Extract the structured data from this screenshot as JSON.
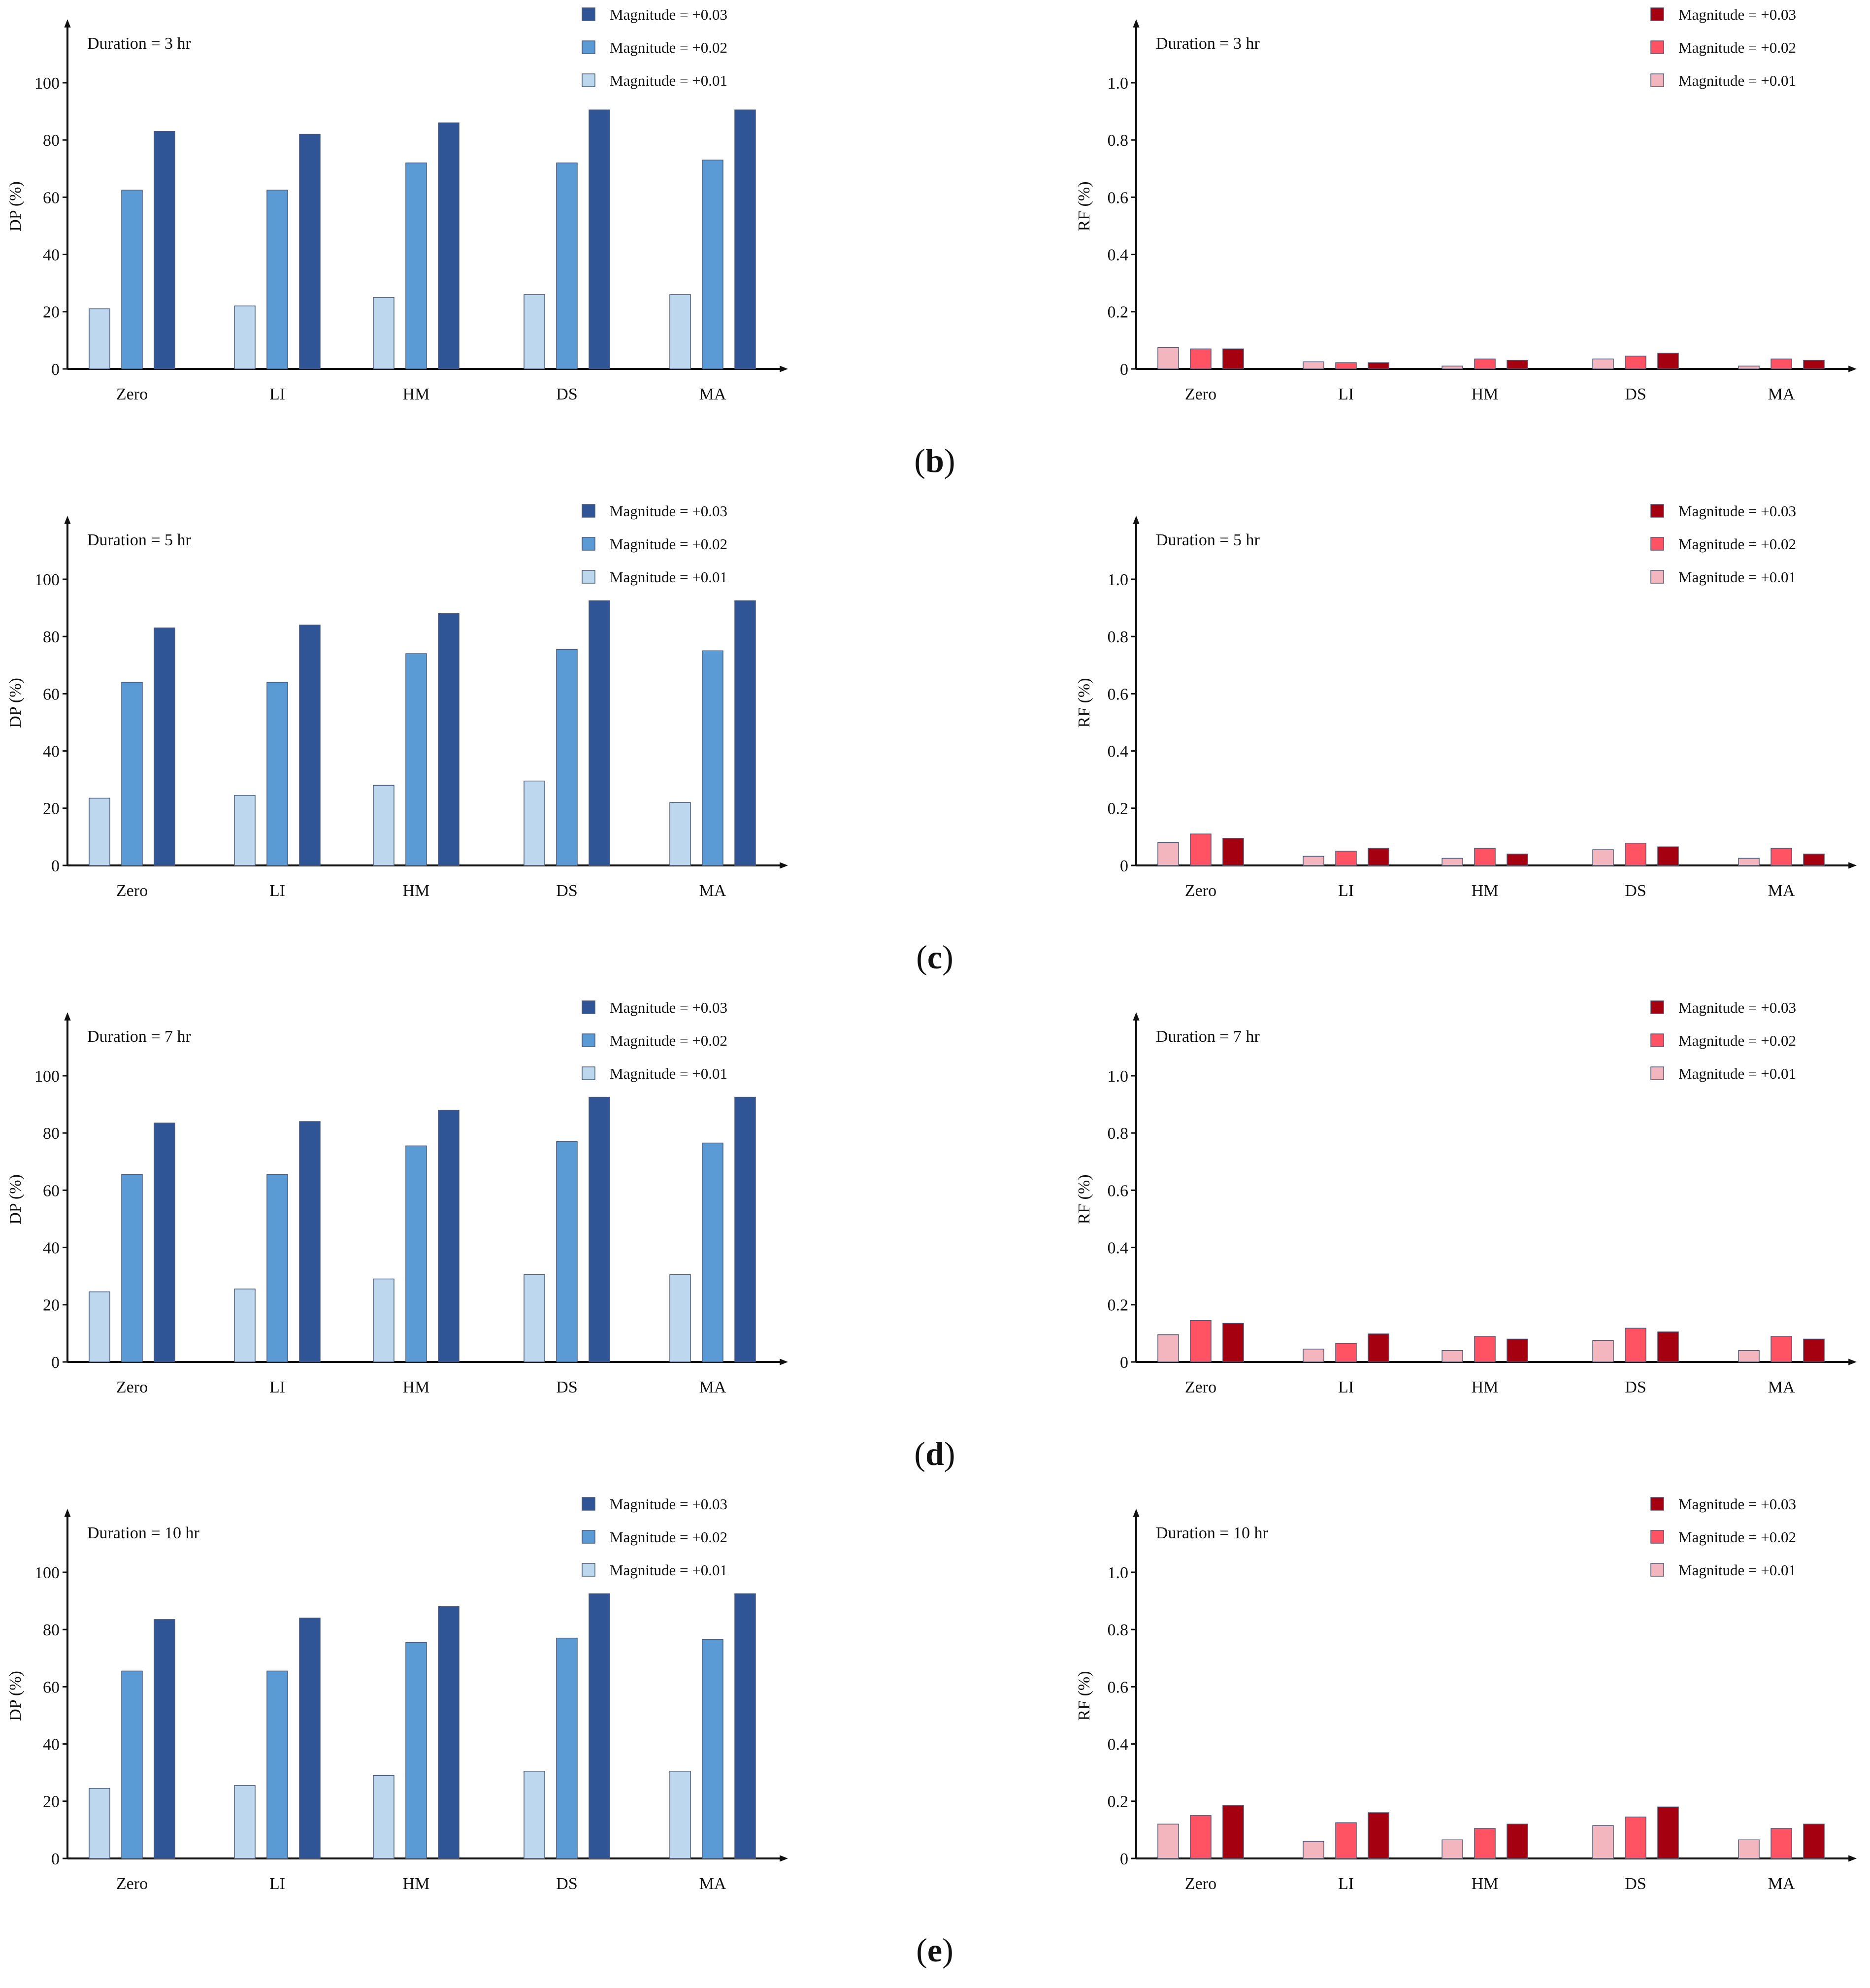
{
  "figure": {
    "panel_labels": [
      "b",
      "c",
      "d",
      "e"
    ]
  },
  "colors": {
    "dp_series": [
      "#BDD7EE",
      "#5B9BD5",
      "#2F5597"
    ],
    "rf_series": [
      "#F4B6BE",
      "#FF5262",
      "#A50010"
    ],
    "bar_stroke": "#4A5A7A",
    "axis": "#111111"
  },
  "chart_data": [
    {
      "id": "b-dp",
      "panel": "b",
      "type": "bar",
      "title": "Duration = 3 hr",
      "ylabel": "DP (%)",
      "xlabel": "",
      "ylim": [
        0,
        110
      ],
      "yticks": [
        0,
        20,
        40,
        60,
        80,
        100
      ],
      "ytick_labels": [
        "0",
        "20",
        "40",
        "60",
        "80",
        "100"
      ],
      "categories": [
        "Zero",
        "LI",
        "HM",
        "DS",
        "MA"
      ],
      "series": [
        {
          "name": "Magnitude = +0.01",
          "values": [
            21,
            22,
            25,
            26,
            26
          ]
        },
        {
          "name": "Magnitude = +0.02",
          "values": [
            62.5,
            62.5,
            72,
            72,
            73
          ]
        },
        {
          "name": "Magnitude = +0.03",
          "values": [
            83,
            82,
            86,
            90.5,
            90.5
          ]
        }
      ],
      "legend_order": [
        "Magnitude = +0.03",
        "Magnitude = +0.02",
        "Magnitude = +0.01"
      ],
      "legend": "top-right"
    },
    {
      "id": "b-rf",
      "panel": "b",
      "type": "bar",
      "title": "Duration = 3 hr",
      "ylabel": "RF (%)",
      "xlabel": "",
      "ylim": [
        0,
        1.1
      ],
      "yticks": [
        0,
        0.2,
        0.4,
        0.6,
        0.8,
        1.0
      ],
      "ytick_labels": [
        "0",
        "0.2",
        "0.4",
        "0.6",
        "0.8",
        "1.0"
      ],
      "categories": [
        "Zero",
        "LI",
        "HM",
        "DS",
        "MA"
      ],
      "series": [
        {
          "name": "Magnitude = +0.01",
          "values": [
            0.075,
            0.025,
            0.01,
            0.035,
            0.01
          ]
        },
        {
          "name": "Magnitude = +0.02",
          "values": [
            0.07,
            0.022,
            0.035,
            0.045,
            0.035
          ]
        },
        {
          "name": "Magnitude = +0.03",
          "values": [
            0.07,
            0.022,
            0.03,
            0.055,
            0.03
          ]
        }
      ],
      "legend_order": [
        "Magnitude = +0.03",
        "Magnitude = +0.02",
        "Magnitude = +0.01"
      ],
      "legend": "top-right"
    },
    {
      "id": "c-dp",
      "panel": "c",
      "type": "bar",
      "title": "Duration = 5 hr",
      "ylabel": "DP (%)",
      "xlabel": "",
      "ylim": [
        0,
        110
      ],
      "yticks": [
        0,
        20,
        40,
        60,
        80,
        100
      ],
      "ytick_labels": [
        "0",
        "20",
        "40",
        "60",
        "80",
        "100"
      ],
      "categories": [
        "Zero",
        "LI",
        "HM",
        "DS",
        "MA"
      ],
      "series": [
        {
          "name": "Magnitude = +0.01",
          "values": [
            23.5,
            24.5,
            28,
            29.5,
            22
          ]
        },
        {
          "name": "Magnitude = +0.02",
          "values": [
            64,
            64,
            74,
            75.5,
            75
          ]
        },
        {
          "name": "Magnitude = +0.03",
          "values": [
            83,
            84,
            88,
            92.5,
            92.5
          ]
        }
      ],
      "legend_order": [
        "Magnitude = +0.03",
        "Magnitude = +0.02",
        "Magnitude = +0.01"
      ],
      "legend": "top-right"
    },
    {
      "id": "c-rf",
      "panel": "c",
      "type": "bar",
      "title": "Duration = 5 hr",
      "ylabel": "RF (%)",
      "xlabel": "",
      "ylim": [
        0,
        1.1
      ],
      "yticks": [
        0,
        0.2,
        0.4,
        0.6,
        0.8,
        1.0
      ],
      "ytick_labels": [
        "0",
        "0.2",
        "0.4",
        "0.6",
        "0.8",
        "1.0"
      ],
      "categories": [
        "Zero",
        "LI",
        "HM",
        "DS",
        "MA"
      ],
      "series": [
        {
          "name": "Magnitude = +0.01",
          "values": [
            0.08,
            0.032,
            0.025,
            0.055,
            0.025
          ]
        },
        {
          "name": "Magnitude = +0.02",
          "values": [
            0.11,
            0.05,
            0.06,
            0.078,
            0.06
          ]
        },
        {
          "name": "Magnitude = +0.03",
          "values": [
            0.095,
            0.06,
            0.04,
            0.065,
            0.04
          ]
        }
      ],
      "legend_order": [
        "Magnitude = +0.03",
        "Magnitude = +0.02",
        "Magnitude = +0.01"
      ],
      "legend": "top-right"
    },
    {
      "id": "d-dp",
      "panel": "d",
      "type": "bar",
      "title": "Duration = 7 hr",
      "ylabel": "DP (%)",
      "xlabel": "",
      "ylim": [
        0,
        110
      ],
      "yticks": [
        0,
        20,
        40,
        60,
        80,
        100
      ],
      "ytick_labels": [
        "0",
        "20",
        "40",
        "60",
        "80",
        "100"
      ],
      "categories": [
        "Zero",
        "LI",
        "HM",
        "DS",
        "MA"
      ],
      "series": [
        {
          "name": "Magnitude = +0.01",
          "values": [
            24.5,
            25.5,
            29,
            30.5,
            30.5
          ]
        },
        {
          "name": "Magnitude = +0.02",
          "values": [
            65.5,
            65.5,
            75.5,
            77,
            76.5
          ]
        },
        {
          "name": "Magnitude = +0.03",
          "values": [
            83.5,
            84,
            88,
            92.5,
            92.5
          ]
        }
      ],
      "legend_order": [
        "Magnitude = +0.03",
        "Magnitude = +0.02",
        "Magnitude = +0.01"
      ],
      "legend": "top-right"
    },
    {
      "id": "d-rf",
      "panel": "d",
      "type": "bar",
      "title": "Duration = 7 hr",
      "ylabel": "RF (%)",
      "xlabel": "",
      "ylim": [
        0,
        1.1
      ],
      "yticks": [
        0,
        0.2,
        0.4,
        0.6,
        0.8,
        1.0
      ],
      "ytick_labels": [
        "0",
        "0.2",
        "0.4",
        "0.6",
        "0.8",
        "1.0"
      ],
      "categories": [
        "Zero",
        "LI",
        "HM",
        "DS",
        "MA"
      ],
      "series": [
        {
          "name": "Magnitude = +0.01",
          "values": [
            0.095,
            0.045,
            0.04,
            0.075,
            0.04
          ]
        },
        {
          "name": "Magnitude = +0.02",
          "values": [
            0.145,
            0.065,
            0.09,
            0.118,
            0.09
          ]
        },
        {
          "name": "Magnitude = +0.03",
          "values": [
            0.135,
            0.098,
            0.08,
            0.105,
            0.08
          ]
        }
      ],
      "legend_order": [
        "Magnitude = +0.03",
        "Magnitude = +0.02",
        "Magnitude = +0.01"
      ],
      "legend": "top-right"
    },
    {
      "id": "e-dp",
      "panel": "e",
      "type": "bar",
      "title": "Duration = 10 hr",
      "ylabel": "DP (%)",
      "xlabel": "",
      "ylim": [
        0,
        110
      ],
      "yticks": [
        0,
        20,
        40,
        60,
        80,
        100
      ],
      "ytick_labels": [
        "0",
        "20",
        "40",
        "60",
        "80",
        "100"
      ],
      "categories": [
        "Zero",
        "LI",
        "HM",
        "DS",
        "MA"
      ],
      "series": [
        {
          "name": "Magnitude = +0.01",
          "values": [
            24.5,
            25.5,
            29,
            30.5,
            30.5
          ]
        },
        {
          "name": "Magnitude = +0.02",
          "values": [
            65.5,
            65.5,
            75.5,
            77,
            76.5
          ]
        },
        {
          "name": "Magnitude = +0.03",
          "values": [
            83.5,
            84,
            88,
            92.5,
            92.5
          ]
        }
      ],
      "legend_order": [
        "Magnitude = +0.03",
        "Magnitude = +0.02",
        "Magnitude = +0.01"
      ],
      "legend": "top-right"
    },
    {
      "id": "e-rf",
      "panel": "e",
      "type": "bar",
      "title": "Duration = 10 hr",
      "ylabel": "RF (%)",
      "xlabel": "",
      "ylim": [
        0,
        1.1
      ],
      "yticks": [
        0,
        0.2,
        0.4,
        0.6,
        0.8,
        1.0
      ],
      "ytick_labels": [
        "0",
        "0.2",
        "0.4",
        "0.6",
        "0.8",
        "1.0"
      ],
      "categories": [
        "Zero",
        "LI",
        "HM",
        "DS",
        "MA"
      ],
      "series": [
        {
          "name": "Magnitude = +0.01",
          "values": [
            0.12,
            0.06,
            0.065,
            0.115,
            0.065
          ]
        },
        {
          "name": "Magnitude = +0.02",
          "values": [
            0.15,
            0.125,
            0.105,
            0.145,
            0.105
          ]
        },
        {
          "name": "Magnitude = +0.03",
          "values": [
            0.185,
            0.16,
            0.12,
            0.18,
            0.12
          ]
        }
      ],
      "legend_order": [
        "Magnitude = +0.03",
        "Magnitude = +0.02",
        "Magnitude = +0.01"
      ],
      "legend": "top-right"
    }
  ]
}
